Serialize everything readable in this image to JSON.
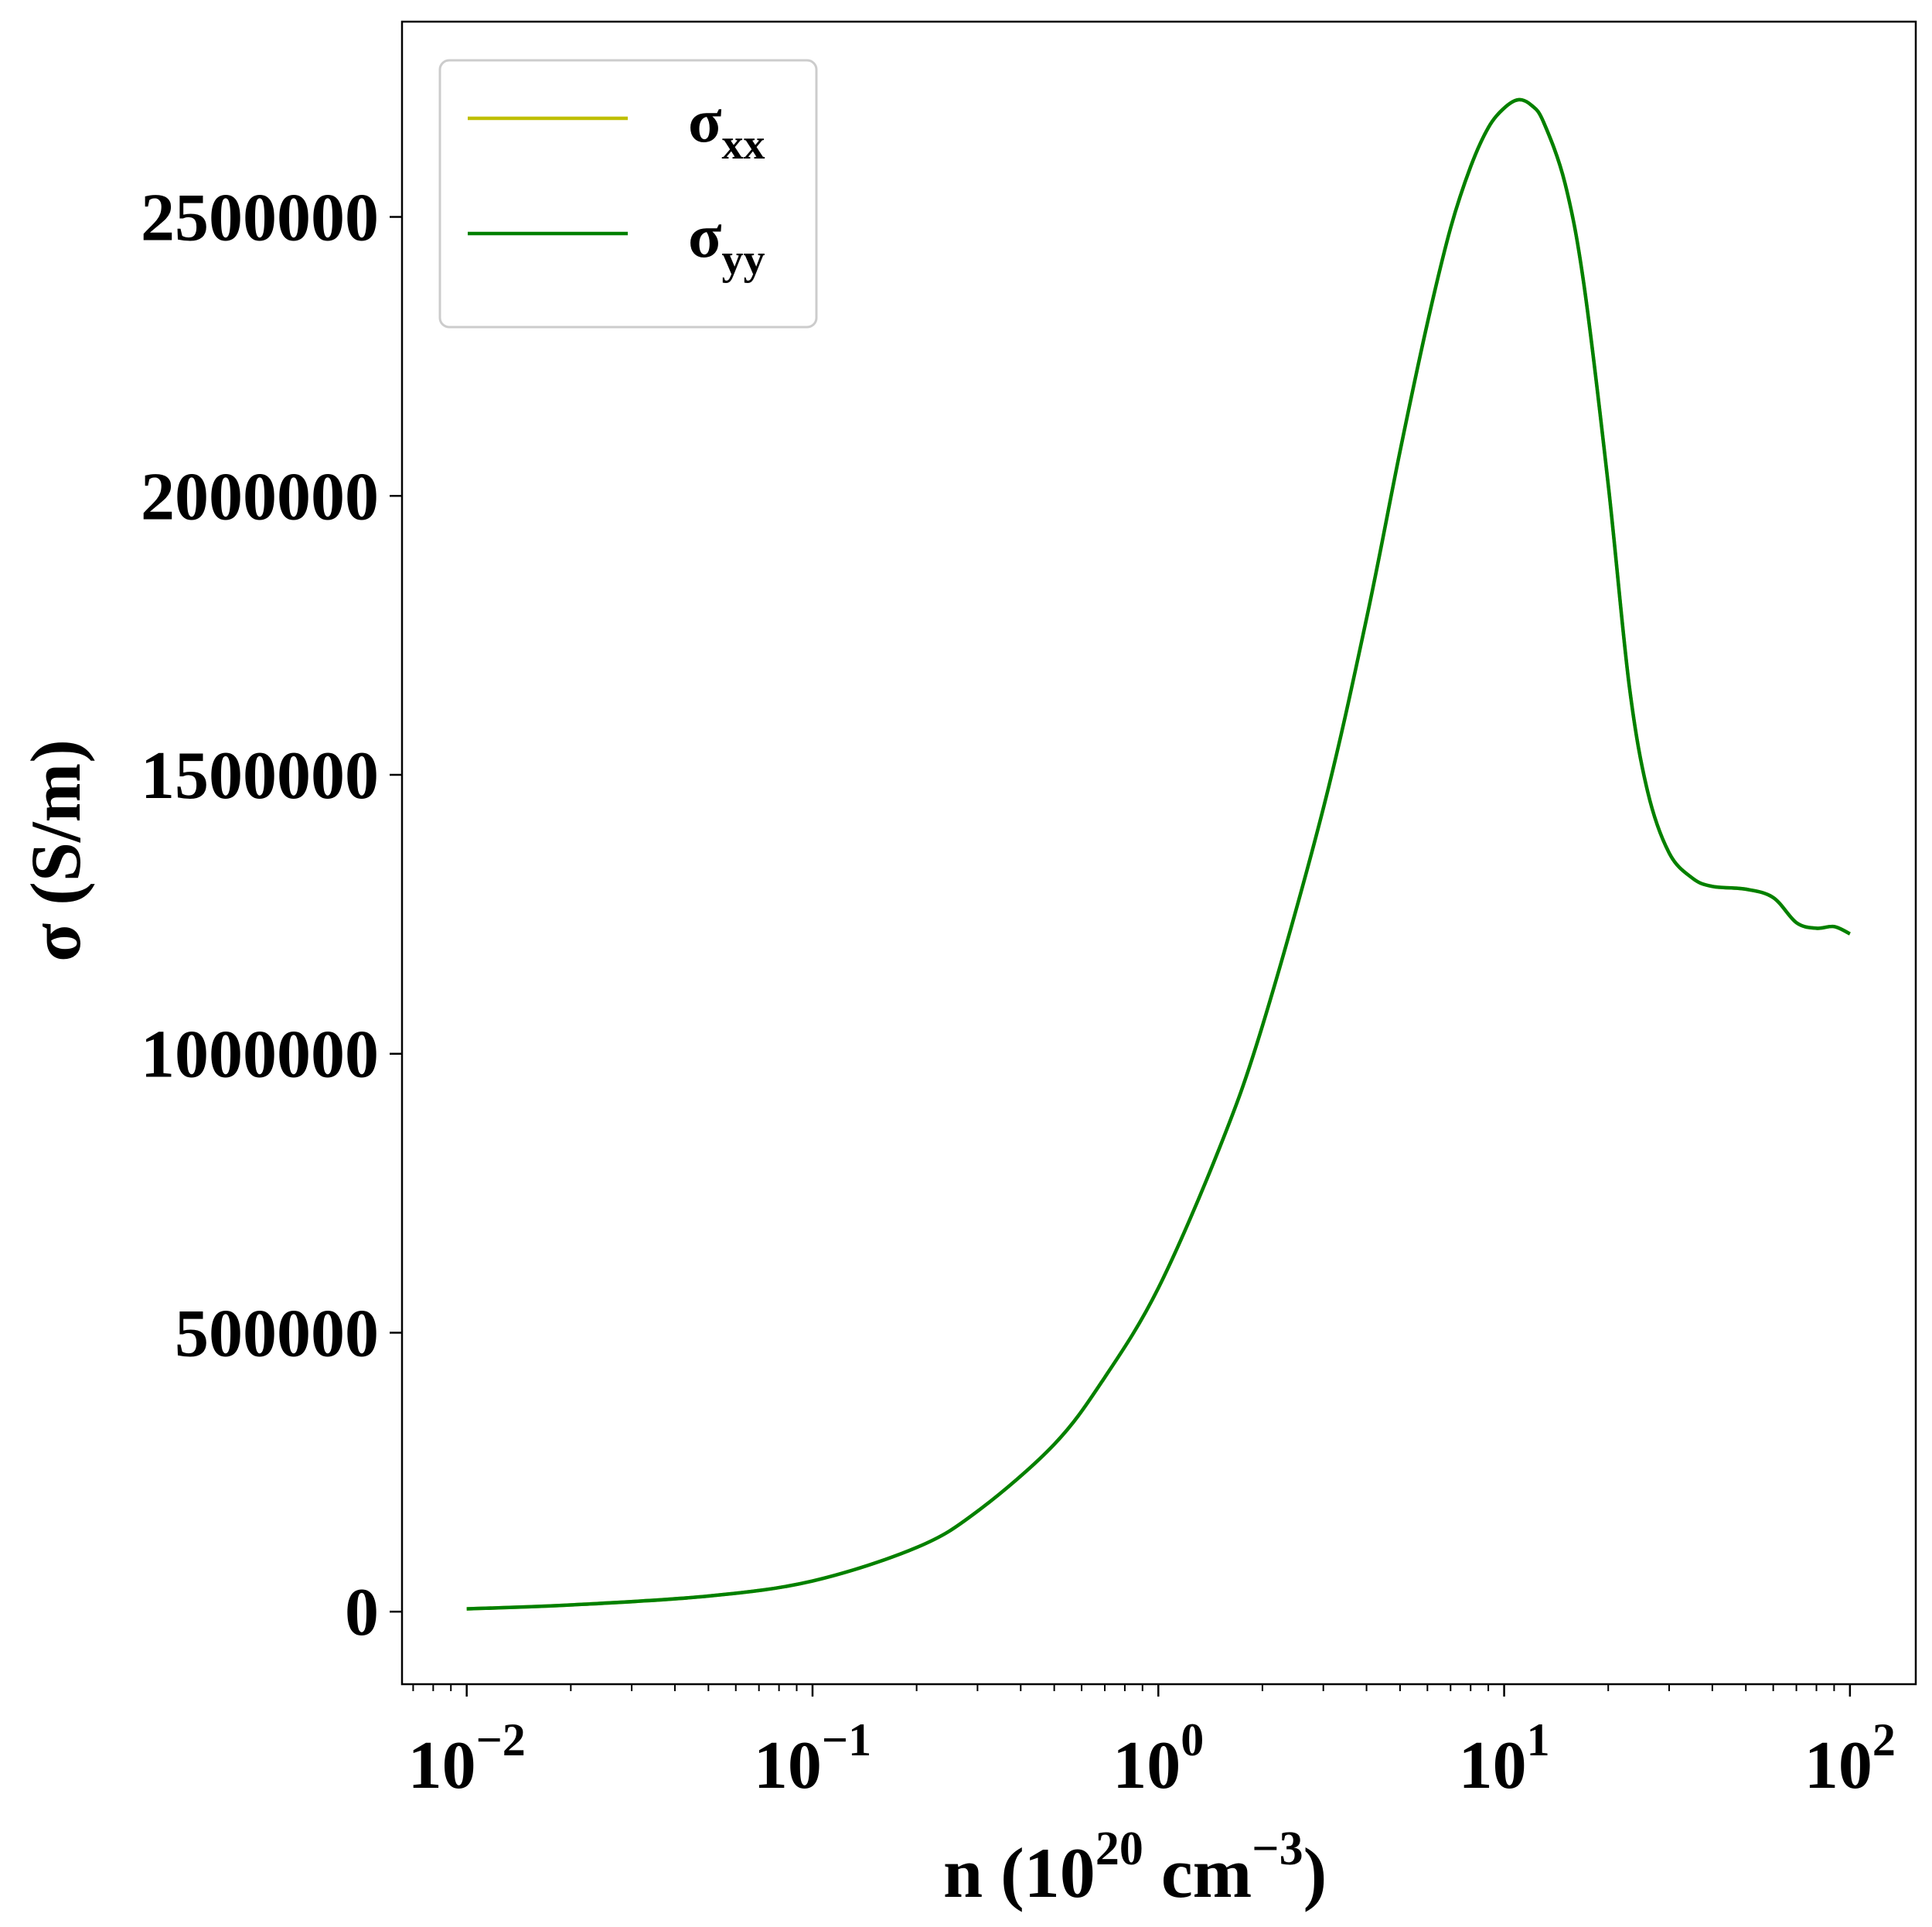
{
  "chart_data": {
    "type": "line",
    "title": "",
    "xlabel": {
      "base": "n (10",
      "exp1": "20",
      "mid": " cm",
      "exp2": "−3",
      "end": ")"
    },
    "ylabel": "σ (S/m)",
    "xscale": "log",
    "xlim": [
      0.0065,
      155
    ],
    "ylim": [
      -130000,
      2850000
    ],
    "x_ticks": [
      {
        "value": 0.01,
        "base": "10",
        "exp": "−2"
      },
      {
        "value": 0.1,
        "base": "10",
        "exp": "−1"
      },
      {
        "value": 1,
        "base": "10",
        "exp": "0"
      },
      {
        "value": 10,
        "base": "10",
        "exp": "1"
      },
      {
        "value": 100,
        "base": "10",
        "exp": "2"
      }
    ],
    "y_ticks": [
      {
        "value": 0,
        "label": "0"
      },
      {
        "value": 500000,
        "label": "500000"
      },
      {
        "value": 1000000,
        "label": "1000000"
      },
      {
        "value": 1500000,
        "label": "1500000"
      },
      {
        "value": 2000000,
        "label": "2000000"
      },
      {
        "value": 2500000,
        "label": "2500000"
      }
    ],
    "grid": false,
    "legend_position": "top-left",
    "series": [
      {
        "name": "σ",
        "sub": "xx",
        "color": "#bfbf00",
        "x": [
          0.01,
          0.02,
          0.05,
          0.1,
          0.2,
          0.3,
          0.5,
          0.7,
          1.0,
          1.5,
          2.0,
          3.0,
          4.0,
          5.0,
          6.0,
          7.0,
          8.0,
          9.0,
          10.0,
          11.0,
          12.0,
          13.0,
          15.0,
          17.0,
          20.0,
          23.0,
          26.0,
          30.0,
          35.0,
          40.0,
          50.0,
          60.0,
          70.0,
          80.0,
          90.0,
          100.0
        ],
        "y": [
          5000,
          12000,
          28000,
          55000,
          115000,
          180000,
          300000,
          420000,
          580000,
          830000,
          1050000,
          1440000,
          1780000,
          2080000,
          2310000,
          2480000,
          2590000,
          2660000,
          2695000,
          2710000,
          2700000,
          2670000,
          2560000,
          2380000,
          2020000,
          1660000,
          1470000,
          1360000,
          1315000,
          1300000,
          1295000,
          1280000,
          1235000,
          1225000,
          1228000,
          1215000
        ]
      },
      {
        "name": "σ",
        "sub": "yy",
        "color": "#008000",
        "x": [
          0.01,
          0.02,
          0.05,
          0.1,
          0.2,
          0.3,
          0.5,
          0.7,
          1.0,
          1.5,
          2.0,
          3.0,
          4.0,
          5.0,
          6.0,
          7.0,
          8.0,
          9.0,
          10.0,
          11.0,
          12.0,
          13.0,
          15.0,
          17.0,
          20.0,
          23.0,
          26.0,
          30.0,
          35.0,
          40.0,
          50.0,
          60.0,
          70.0,
          80.0,
          90.0,
          100.0
        ],
        "y": [
          5000,
          12000,
          28000,
          55000,
          115000,
          180000,
          300000,
          420000,
          580000,
          830000,
          1050000,
          1440000,
          1780000,
          2080000,
          2310000,
          2480000,
          2590000,
          2660000,
          2695000,
          2710000,
          2700000,
          2670000,
          2560000,
          2380000,
          2020000,
          1660000,
          1470000,
          1360000,
          1315000,
          1300000,
          1295000,
          1280000,
          1235000,
          1225000,
          1228000,
          1215000
        ]
      }
    ]
  }
}
